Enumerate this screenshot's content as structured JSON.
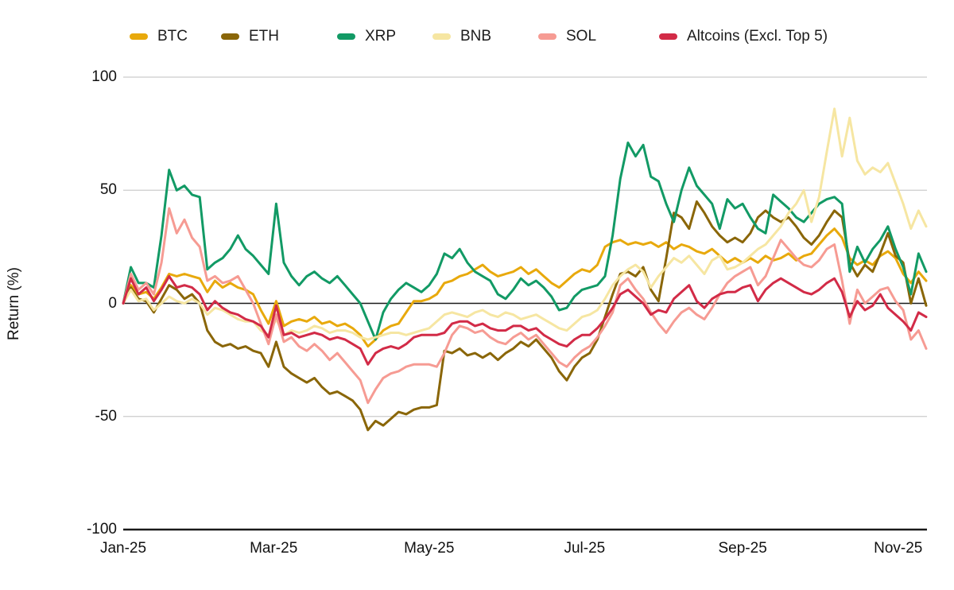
{
  "chart_data": {
    "type": "line",
    "title": "",
    "xlabel": "",
    "ylabel": "Return (%)",
    "ylim": [
      -100,
      100
    ],
    "yticks": [
      100,
      50,
      0,
      -50,
      -100
    ],
    "grid": "horizontal-light-gray",
    "zero_line": true,
    "legend_position": "top",
    "x_unit": "days since 2025-01-01",
    "x_step_days": 3,
    "x_ticks": [
      {
        "label": "Jan-25",
        "day": 0
      },
      {
        "label": "Mar-25",
        "day": 59
      },
      {
        "label": "May-25",
        "day": 120
      },
      {
        "label": "Jul-25",
        "day": 181
      },
      {
        "label": "Sep-25",
        "day": 243
      },
      {
        "label": "Nov-25",
        "day": 304
      }
    ],
    "series": [
      {
        "name": "BTC",
        "color": "#E8A90C",
        "values": [
          0,
          8,
          4,
          5,
          2,
          7,
          13,
          12,
          13,
          12,
          11,
          5,
          10,
          7,
          9,
          7,
          6,
          4,
          -3,
          -9,
          1,
          -10,
          -8,
          -7,
          -8,
          -6,
          -9,
          -8,
          -10,
          -9,
          -11,
          -14,
          -19,
          -16,
          -12,
          -10,
          -9,
          -4,
          1,
          1,
          2,
          4,
          9,
          10,
          12,
          13,
          15,
          17,
          14,
          12,
          13,
          14,
          16,
          13,
          15,
          12,
          9,
          7,
          10,
          13,
          15,
          14,
          17,
          25,
          27,
          28,
          26,
          27,
          26,
          27,
          25,
          27,
          24,
          26,
          25,
          23,
          22,
          24,
          21,
          18,
          20,
          18,
          20,
          18,
          21,
          19,
          20,
          22,
          19,
          21,
          22,
          26,
          30,
          33,
          29,
          20,
          17,
          19,
          17,
          21,
          23,
          20,
          13,
          9,
          14,
          10
        ]
      },
      {
        "name": "ETH",
        "color": "#8A6608",
        "values": [
          0,
          7,
          2,
          1,
          -4,
          2,
          8,
          6,
          2,
          4,
          0,
          -12,
          -17,
          -19,
          -18,
          -20,
          -19,
          -21,
          -22,
          -28,
          -17,
          -28,
          -31,
          -33,
          -35,
          -33,
          -37,
          -40,
          -39,
          -41,
          -43,
          -47,
          -56,
          -52,
          -54,
          -51,
          -48,
          -49,
          -47,
          -46,
          -46,
          -45,
          -21,
          -22,
          -20,
          -23,
          -22,
          -24,
          -22,
          -25,
          -22,
          -20,
          -17,
          -19,
          -16,
          -20,
          -24,
          -30,
          -34,
          -28,
          -24,
          -22,
          -16,
          -6,
          4,
          13,
          14,
          12,
          16,
          6,
          1,
          20,
          40,
          38,
          33,
          45,
          40,
          34,
          30,
          27,
          29,
          27,
          31,
          38,
          41,
          38,
          36,
          38,
          34,
          29,
          26,
          30,
          36,
          41,
          38,
          18,
          12,
          17,
          14,
          22,
          31,
          21,
          18,
          0,
          11,
          -1
        ]
      },
      {
        "name": "XRP",
        "color": "#129A65",
        "values": [
          0,
          16,
          9,
          9,
          7,
          30,
          59,
          50,
          52,
          48,
          47,
          15,
          18,
          20,
          24,
          30,
          24,
          21,
          17,
          13,
          44,
          18,
          12,
          8,
          12,
          14,
          11,
          9,
          12,
          8,
          4,
          0,
          -8,
          -16,
          -4,
          2,
          6,
          9,
          7,
          5,
          8,
          13,
          22,
          20,
          24,
          18,
          14,
          12,
          10,
          4,
          2,
          6,
          11,
          8,
          10,
          7,
          3,
          -3,
          -2,
          3,
          6,
          7,
          8,
          12,
          30,
          55,
          71,
          65,
          70,
          56,
          54,
          44,
          36,
          50,
          60,
          52,
          48,
          44,
          33,
          46,
          42,
          44,
          38,
          33,
          31,
          48,
          45,
          42,
          38,
          36,
          40,
          44,
          46,
          47,
          44,
          14,
          25,
          18,
          24,
          28,
          34,
          24,
          16,
          4,
          22,
          14
        ]
      },
      {
        "name": "BNB",
        "color": "#F6E6A2",
        "values": [
          0,
          6,
          1,
          2,
          -3,
          0,
          3,
          1,
          0,
          2,
          0,
          -5,
          -2,
          -3,
          -5,
          -7,
          -8,
          -8,
          -12,
          -14,
          -7,
          -14,
          -12,
          -13,
          -12,
          -10,
          -11,
          -13,
          -12,
          -12,
          -13,
          -15,
          -16,
          -15,
          -14,
          -13,
          -13,
          -14,
          -13,
          -12,
          -11,
          -8,
          -5,
          -4,
          -5,
          -6,
          -4,
          -3,
          -5,
          -6,
          -4,
          -5,
          -7,
          -6,
          -5,
          -7,
          -9,
          -11,
          -12,
          -9,
          -6,
          -5,
          -3,
          2,
          8,
          12,
          15,
          17,
          14,
          7,
          12,
          16,
          20,
          18,
          21,
          17,
          13,
          19,
          21,
          15,
          16,
          18,
          21,
          24,
          26,
          30,
          34,
          40,
          44,
          50,
          36,
          47,
          67,
          86,
          65,
          82,
          63,
          57,
          60,
          58,
          62,
          53,
          44,
          33,
          41,
          34
        ]
      },
      {
        "name": "SOL",
        "color": "#F69B93",
        "values": [
          0,
          13,
          6,
          9,
          4,
          18,
          42,
          31,
          37,
          29,
          25,
          10,
          12,
          9,
          10,
          12,
          6,
          0,
          -9,
          -18,
          -5,
          -17,
          -15,
          -19,
          -21,
          -18,
          -21,
          -25,
          -22,
          -26,
          -30,
          -34,
          -44,
          -38,
          -33,
          -31,
          -30,
          -28,
          -27,
          -27,
          -27,
          -28,
          -22,
          -14,
          -10,
          -11,
          -13,
          -12,
          -15,
          -17,
          -18,
          -15,
          -13,
          -16,
          -14,
          -18,
          -22,
          -26,
          -28,
          -24,
          -21,
          -19,
          -15,
          -10,
          -4,
          8,
          11,
          6,
          2,
          -4,
          -9,
          -13,
          -8,
          -4,
          -2,
          -5,
          -7,
          -2,
          4,
          9,
          12,
          14,
          16,
          8,
          12,
          20,
          28,
          24,
          20,
          17,
          16,
          19,
          24,
          26,
          10,
          -9,
          6,
          0,
          3,
          6,
          7,
          1,
          -3,
          -16,
          -12,
          -20
        ]
      },
      {
        "name": "Altcoins (Excl. Top 5)",
        "color": "#D22B47",
        "values": [
          0,
          11,
          4,
          7,
          1,
          6,
          12,
          7,
          8,
          7,
          4,
          -3,
          1,
          -2,
          -4,
          -5,
          -7,
          -8,
          -10,
          -15,
          -1,
          -14,
          -13,
          -15,
          -14,
          -13,
          -14,
          -16,
          -15,
          -16,
          -18,
          -20,
          -27,
          -22,
          -20,
          -19,
          -20,
          -18,
          -15,
          -14,
          -14,
          -14,
          -13,
          -9,
          -8,
          -8,
          -10,
          -9,
          -11,
          -12,
          -12,
          -10,
          -10,
          -12,
          -11,
          -14,
          -16,
          -18,
          -19,
          -16,
          -14,
          -14,
          -11,
          -7,
          -2,
          4,
          6,
          3,
          0,
          -5,
          -3,
          -4,
          2,
          5,
          8,
          1,
          -2,
          2,
          4,
          5,
          5,
          7,
          8,
          1,
          6,
          9,
          11,
          9,
          7,
          5,
          4,
          6,
          9,
          11,
          5,
          -6,
          1,
          -3,
          -1,
          4,
          -2,
          -5,
          -8,
          -12,
          -4,
          -6
        ]
      }
    ],
    "style": {
      "line_width": 3,
      "grid_color": "#cccccc",
      "zero_line_color": "#1a1a1a",
      "baseline_color": "#1a1a1a",
      "text_color": "#111111",
      "background": "#ffffff"
    }
  }
}
